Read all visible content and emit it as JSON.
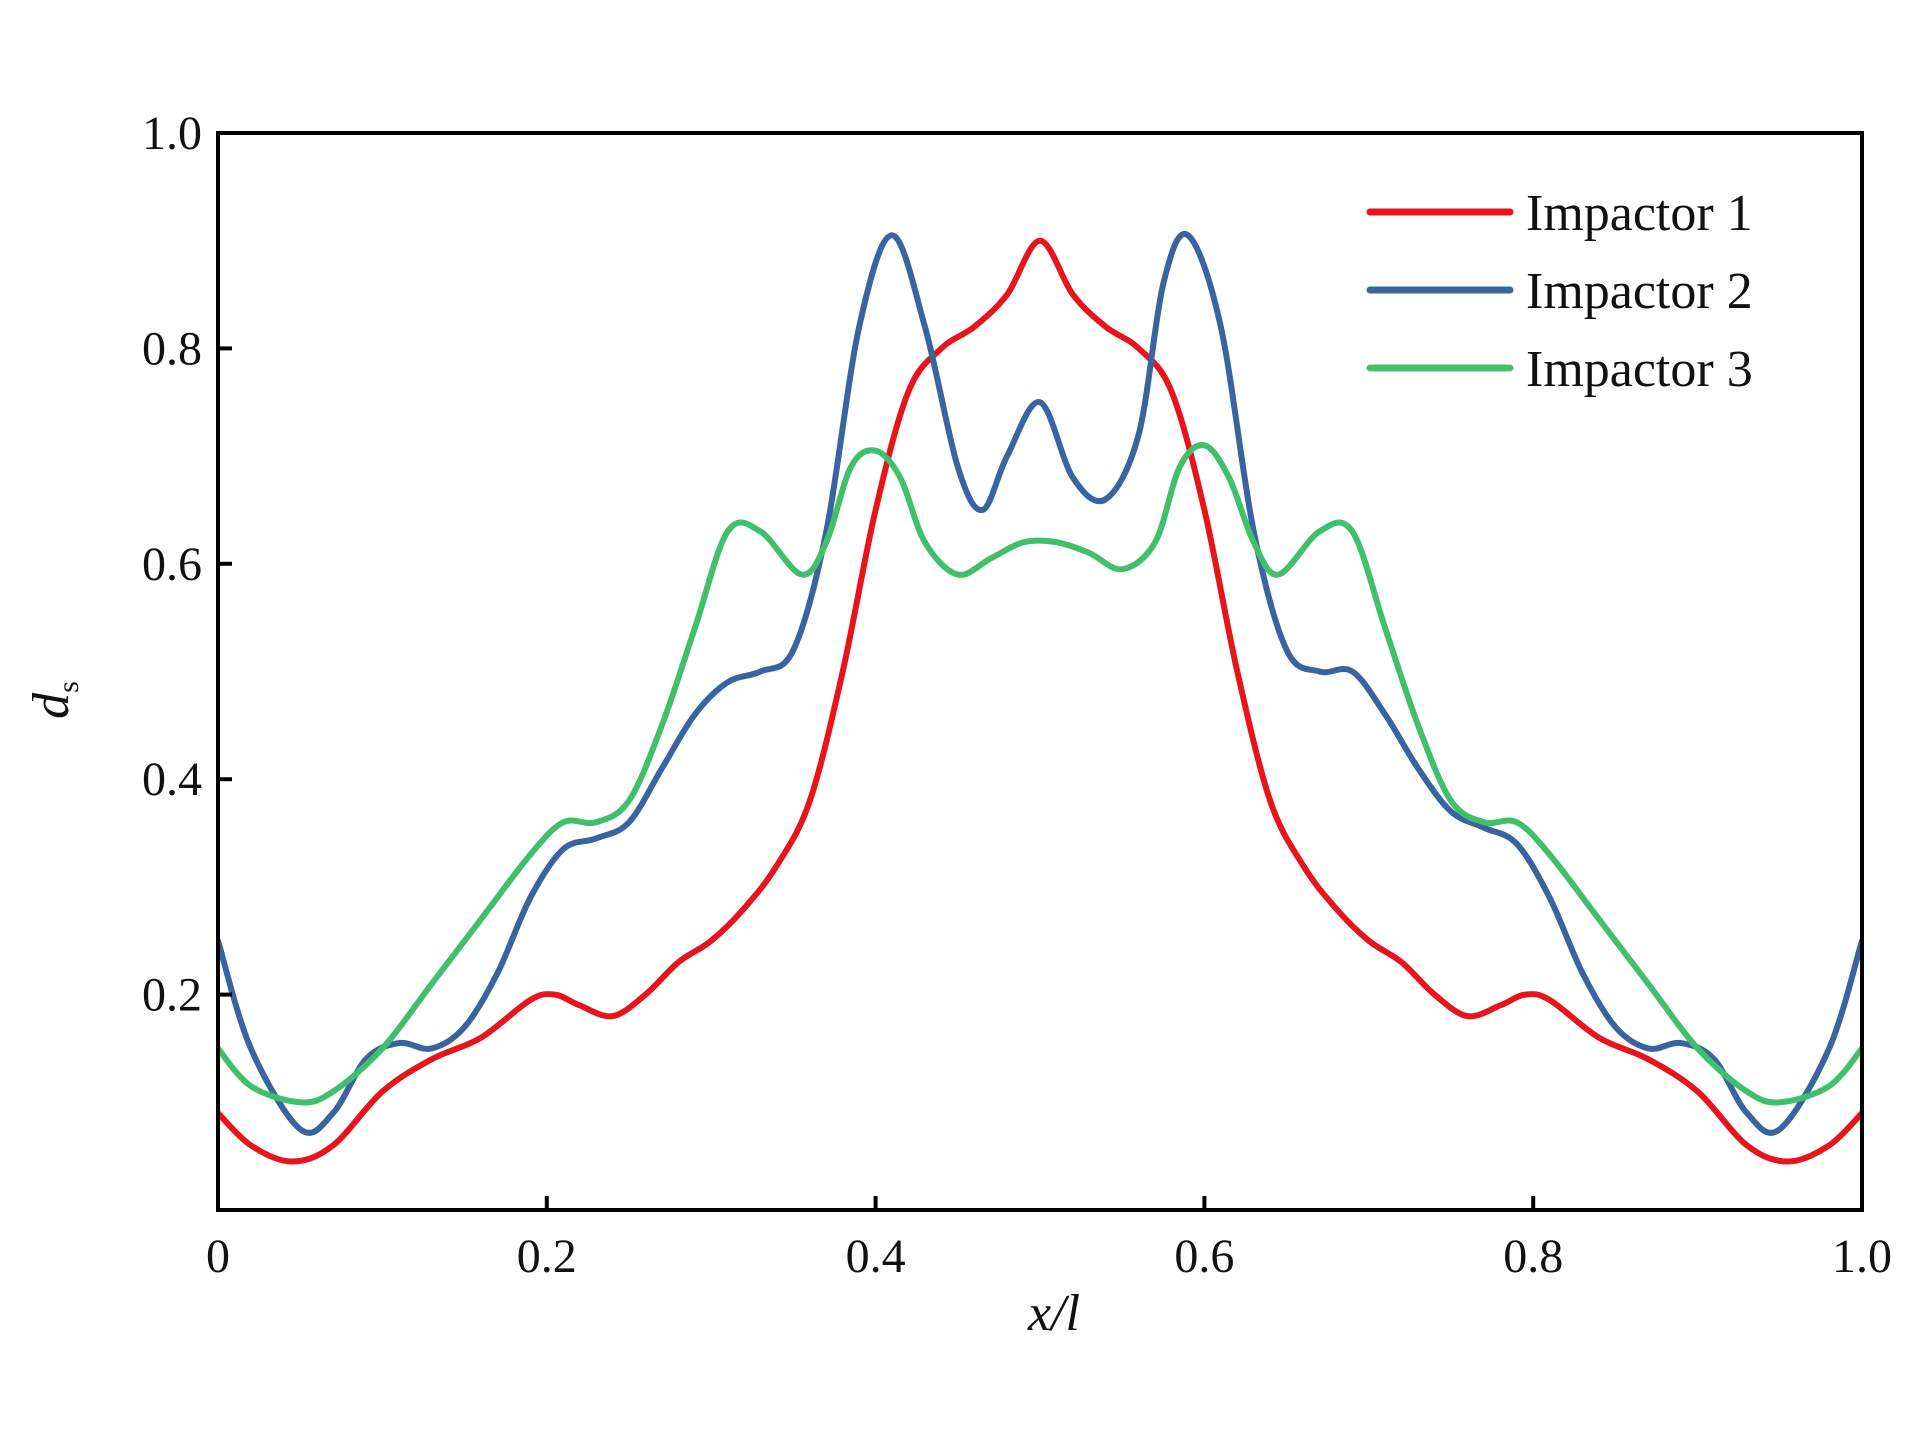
{
  "chart_data": {
    "type": "line",
    "xlabel": "x/l",
    "ylabel_main": "d",
    "ylabel_sub": "s",
    "xlim": [
      0,
      1.0
    ],
    "ylim": [
      0,
      1.0
    ],
    "x_ticks": [
      0,
      0.2,
      0.4,
      0.6,
      0.8,
      1.0
    ],
    "x_tick_labels": [
      "0",
      "0.2",
      "0.4",
      "0.6",
      "0.8",
      "1.0"
    ],
    "y_ticks": [
      0.2,
      0.4,
      0.6,
      0.8,
      1.0
    ],
    "y_tick_labels": [
      "0.2",
      "0.4",
      "0.6",
      "0.8",
      "1.0"
    ],
    "grid": false,
    "legend_position": "top-right",
    "series": [
      {
        "name": "Impactor 1",
        "color": "#e8141c",
        "points": [
          [
            0,
            0.09
          ],
          [
            0.02,
            0.06
          ],
          [
            0.045,
            0.045
          ],
          [
            0.07,
            0.06
          ],
          [
            0.1,
            0.11
          ],
          [
            0.13,
            0.14
          ],
          [
            0.16,
            0.16
          ],
          [
            0.19,
            0.195
          ],
          [
            0.205,
            0.2
          ],
          [
            0.22,
            0.19
          ],
          [
            0.24,
            0.18
          ],
          [
            0.26,
            0.2
          ],
          [
            0.28,
            0.23
          ],
          [
            0.3,
            0.25
          ],
          [
            0.32,
            0.28
          ],
          [
            0.34,
            0.32
          ],
          [
            0.36,
            0.38
          ],
          [
            0.38,
            0.5
          ],
          [
            0.4,
            0.65
          ],
          [
            0.42,
            0.76
          ],
          [
            0.44,
            0.8
          ],
          [
            0.46,
            0.82
          ],
          [
            0.48,
            0.85
          ],
          [
            0.5,
            0.9
          ],
          [
            0.52,
            0.85
          ],
          [
            0.54,
            0.82
          ],
          [
            0.56,
            0.8
          ],
          [
            0.58,
            0.76
          ],
          [
            0.6,
            0.65
          ],
          [
            0.62,
            0.5
          ],
          [
            0.64,
            0.38
          ],
          [
            0.66,
            0.32
          ],
          [
            0.68,
            0.28
          ],
          [
            0.7,
            0.25
          ],
          [
            0.72,
            0.23
          ],
          [
            0.74,
            0.2
          ],
          [
            0.76,
            0.18
          ],
          [
            0.78,
            0.19
          ],
          [
            0.795,
            0.2
          ],
          [
            0.81,
            0.195
          ],
          [
            0.84,
            0.16
          ],
          [
            0.87,
            0.14
          ],
          [
            0.9,
            0.11
          ],
          [
            0.93,
            0.06
          ],
          [
            0.955,
            0.045
          ],
          [
            0.98,
            0.06
          ],
          [
            1.0,
            0.09
          ]
        ]
      },
      {
        "name": "Impactor 2",
        "color": "#3a64a0",
        "points": [
          [
            0,
            0.25
          ],
          [
            0.02,
            0.15
          ],
          [
            0.05,
            0.075
          ],
          [
            0.07,
            0.09
          ],
          [
            0.09,
            0.14
          ],
          [
            0.11,
            0.155
          ],
          [
            0.13,
            0.15
          ],
          [
            0.15,
            0.17
          ],
          [
            0.17,
            0.22
          ],
          [
            0.19,
            0.29
          ],
          [
            0.21,
            0.335
          ],
          [
            0.23,
            0.345
          ],
          [
            0.25,
            0.36
          ],
          [
            0.27,
            0.41
          ],
          [
            0.29,
            0.46
          ],
          [
            0.31,
            0.49
          ],
          [
            0.33,
            0.5
          ],
          [
            0.35,
            0.52
          ],
          [
            0.37,
            0.63
          ],
          [
            0.39,
            0.82
          ],
          [
            0.41,
            0.905
          ],
          [
            0.43,
            0.82
          ],
          [
            0.45,
            0.69
          ],
          [
            0.465,
            0.65
          ],
          [
            0.48,
            0.7
          ],
          [
            0.5,
            0.75
          ],
          [
            0.52,
            0.68
          ],
          [
            0.54,
            0.66
          ],
          [
            0.56,
            0.72
          ],
          [
            0.575,
            0.86
          ],
          [
            0.59,
            0.905
          ],
          [
            0.61,
            0.82
          ],
          [
            0.63,
            0.63
          ],
          [
            0.65,
            0.52
          ],
          [
            0.67,
            0.5
          ],
          [
            0.69,
            0.5
          ],
          [
            0.71,
            0.46
          ],
          [
            0.73,
            0.41
          ],
          [
            0.75,
            0.37
          ],
          [
            0.77,
            0.355
          ],
          [
            0.79,
            0.34
          ],
          [
            0.81,
            0.29
          ],
          [
            0.83,
            0.22
          ],
          [
            0.85,
            0.17
          ],
          [
            0.87,
            0.15
          ],
          [
            0.89,
            0.155
          ],
          [
            0.91,
            0.14
          ],
          [
            0.93,
            0.09
          ],
          [
            0.95,
            0.075
          ],
          [
            0.98,
            0.15
          ],
          [
            1.0,
            0.25
          ]
        ]
      },
      {
        "name": "Impactor 3",
        "color": "#40c06a",
        "points": [
          [
            0,
            0.15
          ],
          [
            0.02,
            0.115
          ],
          [
            0.05,
            0.1
          ],
          [
            0.07,
            0.11
          ],
          [
            0.1,
            0.15
          ],
          [
            0.13,
            0.21
          ],
          [
            0.16,
            0.27
          ],
          [
            0.19,
            0.33
          ],
          [
            0.21,
            0.36
          ],
          [
            0.23,
            0.36
          ],
          [
            0.25,
            0.38
          ],
          [
            0.27,
            0.45
          ],
          [
            0.29,
            0.54
          ],
          [
            0.31,
            0.63
          ],
          [
            0.33,
            0.63
          ],
          [
            0.355,
            0.59
          ],
          [
            0.37,
            0.62
          ],
          [
            0.385,
            0.69
          ],
          [
            0.4,
            0.705
          ],
          [
            0.415,
            0.68
          ],
          [
            0.43,
            0.62
          ],
          [
            0.45,
            0.59
          ],
          [
            0.47,
            0.605
          ],
          [
            0.49,
            0.62
          ],
          [
            0.51,
            0.62
          ],
          [
            0.53,
            0.61
          ],
          [
            0.55,
            0.595
          ],
          [
            0.57,
            0.62
          ],
          [
            0.585,
            0.69
          ],
          [
            0.6,
            0.71
          ],
          [
            0.615,
            0.68
          ],
          [
            0.63,
            0.62
          ],
          [
            0.645,
            0.59
          ],
          [
            0.67,
            0.63
          ],
          [
            0.69,
            0.63
          ],
          [
            0.71,
            0.54
          ],
          [
            0.73,
            0.45
          ],
          [
            0.75,
            0.38
          ],
          [
            0.77,
            0.36
          ],
          [
            0.79,
            0.36
          ],
          [
            0.81,
            0.33
          ],
          [
            0.84,
            0.27
          ],
          [
            0.87,
            0.21
          ],
          [
            0.9,
            0.15
          ],
          [
            0.93,
            0.11
          ],
          [
            0.95,
            0.1
          ],
          [
            0.98,
            0.115
          ],
          [
            1.0,
            0.15
          ]
        ]
      }
    ]
  }
}
